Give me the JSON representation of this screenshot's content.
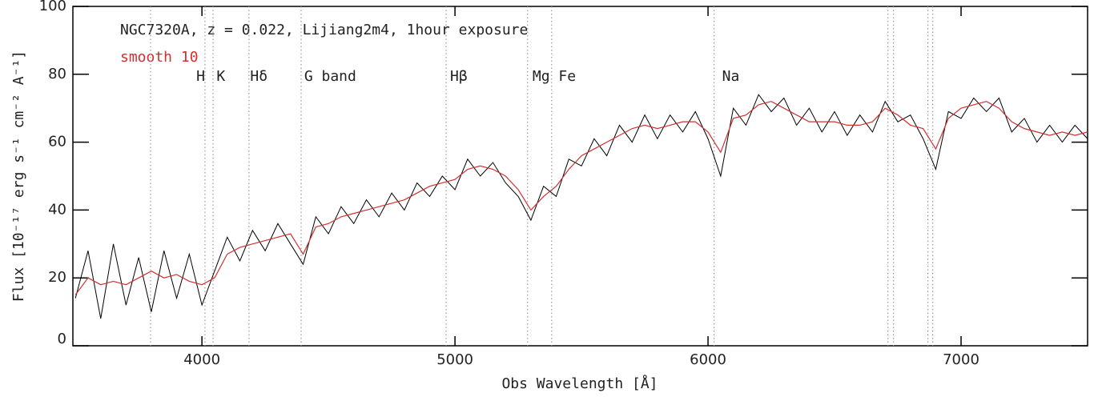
{
  "chart_data": {
    "type": "line",
    "title": "NGC7320A, z = 0.022, Lijiang2m4, 1hour exposure",
    "x_label": "Obs Wavelength [Å]",
    "y_label": "Flux [10⁻¹⁷ erg s⁻¹ cm⁻² A⁻¹]",
    "x": [
      3500,
      3550,
      3600,
      3650,
      3700,
      3750,
      3800,
      3850,
      3900,
      3950,
      4000,
      4050,
      4100,
      4150,
      4200,
      4250,
      4300,
      4350,
      4400,
      4450,
      4500,
      4550,
      4600,
      4650,
      4700,
      4750,
      4800,
      4850,
      4900,
      4950,
      5000,
      5050,
      5100,
      5150,
      5200,
      5250,
      5300,
      5350,
      5400,
      5450,
      5500,
      5550,
      5600,
      5650,
      5700,
      5750,
      5800,
      5850,
      5900,
      5950,
      6000,
      6050,
      6100,
      6150,
      6200,
      6250,
      6300,
      6350,
      6400,
      6450,
      6500,
      6550,
      6600,
      6650,
      6700,
      6750,
      6800,
      6850,
      6900,
      6950,
      7000,
      7050,
      7100,
      7150,
      7200,
      7250,
      7300,
      7350,
      7400,
      7450,
      7500
    ],
    "series": [
      {
        "color": "#000000",
        "values": [
          14,
          28,
          8,
          30,
          12,
          26,
          10,
          28,
          14,
          27,
          12,
          22,
          32,
          25,
          34,
          28,
          36,
          30,
          24,
          38,
          33,
          41,
          36,
          43,
          38,
          45,
          40,
          48,
          44,
          50,
          46,
          55,
          50,
          54,
          48,
          44,
          37,
          47,
          44,
          55,
          53,
          61,
          56,
          65,
          60,
          68,
          61,
          68,
          63,
          69,
          61,
          50,
          70,
          65,
          74,
          69,
          73,
          65,
          70,
          63,
          69,
          62,
          68,
          63,
          72,
          66,
          68,
          61,
          52,
          69,
          67,
          73,
          69,
          73,
          63,
          67,
          60,
          65,
          60,
          65,
          61
        ]
      },
      {
        "name": "smooth 10",
        "color": "#d03030",
        "values": [
          15,
          20,
          18,
          19,
          18,
          20,
          22,
          20,
          21,
          19,
          18,
          20,
          27,
          29,
          30,
          31,
          32,
          33,
          27,
          35,
          36,
          38,
          39,
          40,
          41,
          42,
          43,
          45,
          47,
          48,
          49,
          52,
          53,
          52,
          50,
          46,
          40,
          44,
          47,
          52,
          56,
          58,
          60,
          62,
          64,
          65,
          64,
          65,
          66,
          66,
          63,
          57,
          67,
          68,
          71,
          72,
          70,
          68,
          66,
          66,
          66,
          65,
          65,
          66,
          70,
          68,
          65,
          64,
          58,
          67,
          70,
          71,
          72,
          70,
          66,
          64,
          63,
          62,
          63,
          62,
          63
        ]
      }
    ],
    "vlines": [
      3797,
      4012,
      4044,
      4186,
      4392,
      4965,
      5287,
      5382,
      6024,
      6711,
      6733,
      6869,
      6888
    ],
    "annotations": [
      {
        "text": "H",
        "x": 3995
      },
      {
        "text": "K",
        "x": 4075
      },
      {
        "text": "Hδ",
        "x": 4225
      },
      {
        "text": "G band",
        "x": 4507
      },
      {
        "text": "Hβ",
        "x": 5015
      },
      {
        "text": "Mg Fe",
        "x": 5392
      },
      {
        "text": "Na",
        "x": 6090
      }
    ],
    "xlim": [
      3490,
      7500
    ],
    "ylim": [
      0,
      100
    ],
    "xticks": [
      4000,
      5000,
      6000,
      7000
    ],
    "yticks": [
      0,
      20,
      40,
      60,
      80,
      100
    ]
  }
}
